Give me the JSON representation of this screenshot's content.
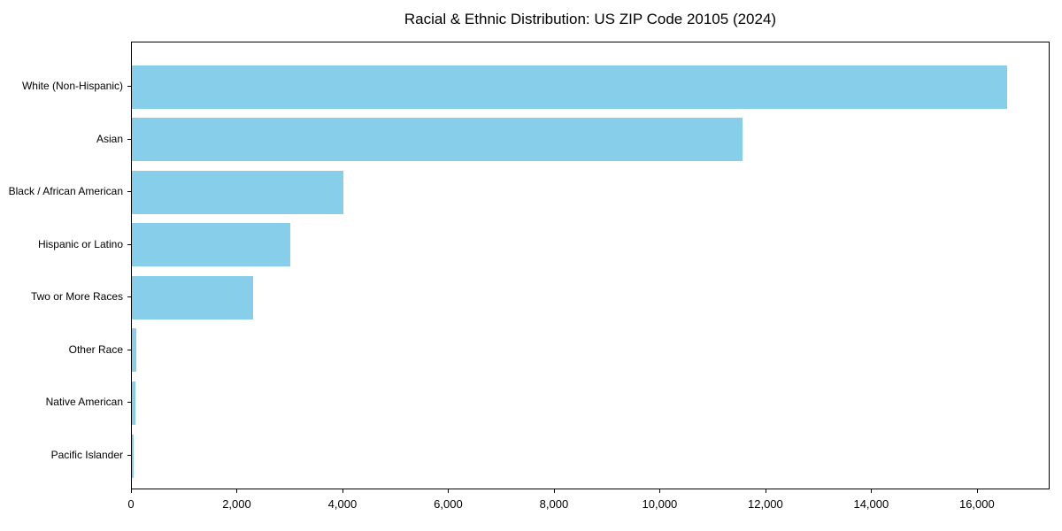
{
  "figure": {
    "background": "#ffffff"
  },
  "chart_data": {
    "type": "bar",
    "orientation": "horizontal",
    "title": "Racial & Ethnic Distribution: US ZIP Code 20105 (2024)",
    "categories": [
      "White (Non-Hispanic)",
      "Asian",
      "Black / African American",
      "Hispanic or Latino",
      "Two or More Races",
      "Other Race",
      "Native American",
      "Pacific Islander"
    ],
    "values": [
      16550,
      11550,
      4000,
      3000,
      2300,
      80,
      60,
      40
    ],
    "xlabel": "",
    "ylabel": "",
    "xlim": [
      0,
      17375
    ],
    "xticks": [
      0,
      2000,
      4000,
      6000,
      8000,
      10000,
      12000,
      14000,
      16000
    ],
    "xtick_labels": [
      "0",
      "2,000",
      "4,000",
      "6,000",
      "8,000",
      "10,000",
      "12,000",
      "14,000",
      "16,000"
    ],
    "bar_color": "#87CEEB",
    "axis_color": "#000000",
    "grid": false,
    "legend": null
  }
}
